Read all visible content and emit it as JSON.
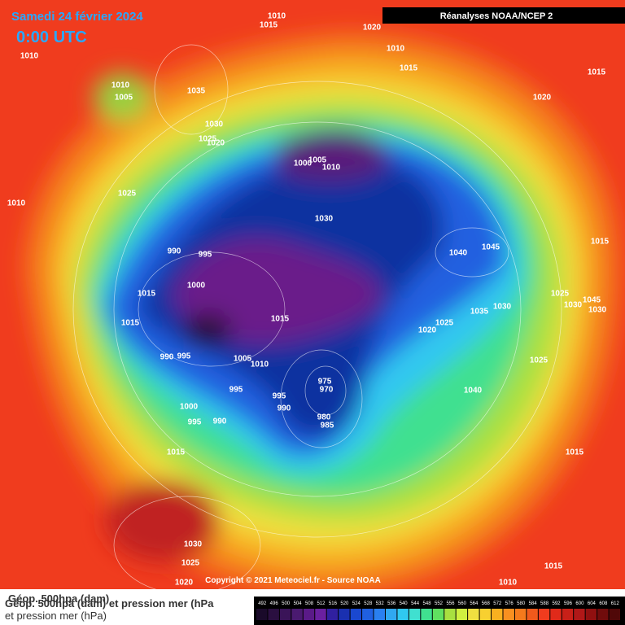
{
  "header": {
    "date": "Samedi 24 février 2024",
    "time": "0:00 UTC",
    "source_box": "Réanalyses NOAA/NCEP 2"
  },
  "footer": {
    "copyright": "Copyright © 2021 Meteociel.fr - Source NOAA",
    "caption_line1": "Géop. 500hpa (dam)",
    "caption_line1_overlap": "Géop. 500hpa (dam) et pression mer (hPa",
    "caption_line2": "et pression mer (hPa)"
  },
  "legend": {
    "labels": [
      492,
      496,
      500,
      504,
      508,
      512,
      516,
      520,
      524,
      528,
      532,
      536,
      540,
      544,
      548,
      552,
      556,
      560,
      564,
      568,
      572,
      576,
      580,
      584,
      588,
      592,
      596,
      600,
      604,
      608,
      612
    ]
  },
  "isobar_labels": [
    "1010",
    "1015",
    "1020",
    "1010",
    "1010",
    "1015",
    "1015",
    "1010",
    "1005",
    "1035",
    "1020",
    "1030",
    "1025",
    "1020",
    "1005",
    "1000",
    "1010",
    "1025",
    "1010",
    "1030",
    "1045",
    "1040",
    "1015",
    "990",
    "995",
    "1000",
    "1015",
    "1025",
    "1030",
    "1045",
    "1035",
    "1030",
    "1030",
    "1015",
    "1015",
    "1025",
    "1020",
    "990",
    "995",
    "1005",
    "1010",
    "1025",
    "975",
    "970",
    "1040",
    "995",
    "995",
    "990",
    "980",
    "985",
    "1000",
    "995",
    "990",
    "1015",
    "1015",
    "1030",
    "1025",
    "1015",
    "1020",
    "1010"
  ]
}
